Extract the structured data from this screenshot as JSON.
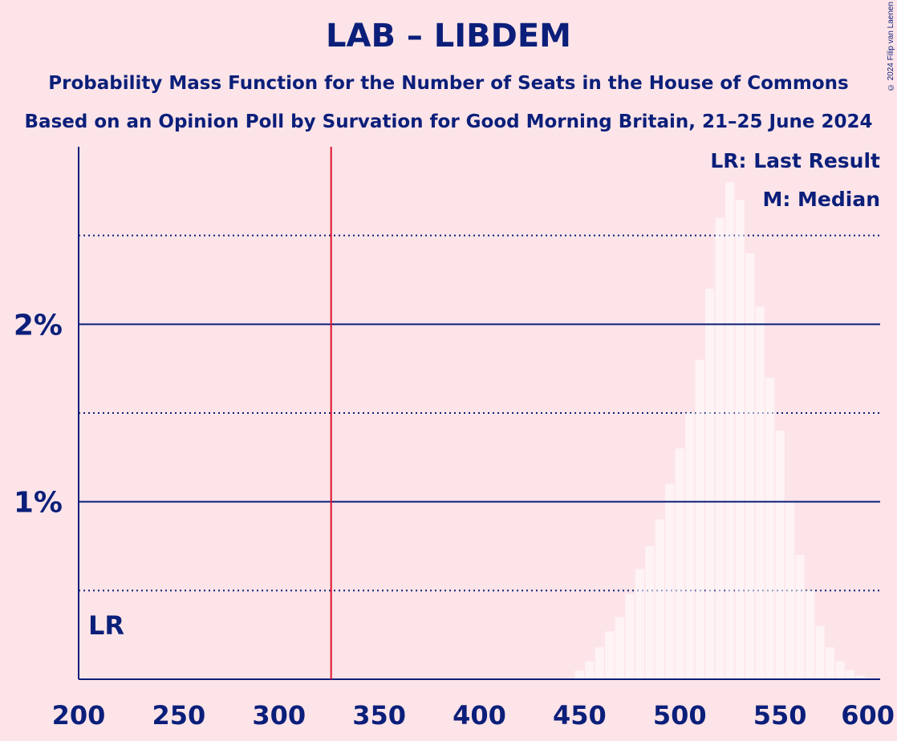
{
  "title": "LAB – LIBDEM",
  "subtitle1": "Probability Mass Function for the Number of Seats in the House of Commons",
  "subtitle2": "Based on an Opinion Poll by Survation for Good Morning Britain, 21–25 June 2024",
  "copyright": "© 2024 Filip van Laenen",
  "colors": {
    "background": "#fde4e8",
    "ink": "#0b1f7a",
    "last_result_line": "#e0102c",
    "bars": "#ffffff"
  },
  "chart_data": {
    "type": "bar",
    "title": "LAB – LIBDEM",
    "xlabel": "",
    "ylabel": "",
    "xlim": [
      200,
      600
    ],
    "ylim": [
      0,
      0.03
    ],
    "x_ticks": [
      200,
      250,
      300,
      350,
      400,
      450,
      500,
      550,
      600
    ],
    "x_tick_labels": [
      "200",
      "250",
      "300",
      "350",
      "400",
      "450",
      "500",
      "550",
      "600"
    ],
    "y_ticks": [
      0.01,
      0.02
    ],
    "y_tick_labels": [
      "1%",
      "2%"
    ],
    "y_minor_ticks": [
      0.005,
      0.015,
      0.025
    ],
    "last_result": 326,
    "last_result_label": "LR",
    "legend": [
      "LR: Last Result",
      "M: Median"
    ],
    "legend_position": "top-right",
    "series": [
      {
        "x": [
          450,
          455,
          460,
          465,
          470,
          475,
          480,
          485,
          490,
          495,
          500,
          505,
          510,
          515,
          520,
          525,
          530,
          535,
          540,
          545,
          550,
          555,
          560,
          565,
          570,
          575,
          580,
          585,
          590
        ],
        "values": [
          0.0005,
          0.001,
          0.0018,
          0.0027,
          0.0035,
          0.0048,
          0.0062,
          0.0075,
          0.009,
          0.011,
          0.013,
          0.015,
          0.018,
          0.022,
          0.026,
          0.028,
          0.027,
          0.024,
          0.021,
          0.017,
          0.014,
          0.01,
          0.007,
          0.005,
          0.003,
          0.0018,
          0.001,
          0.0005,
          0.0002
        ]
      }
    ]
  }
}
